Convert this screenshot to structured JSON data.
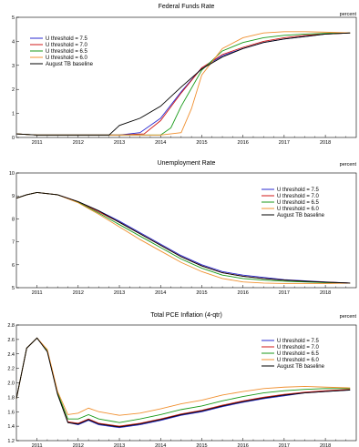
{
  "colors": {
    "u75": "#2a2ad0",
    "u70": "#d01818",
    "u65": "#189a18",
    "u60": "#f09030",
    "base": "#000000"
  },
  "chart_data": [
    {
      "type": "line",
      "title": "Federal Funds Rate",
      "ylabel": "percent",
      "xlabel": "",
      "xlim": [
        2010.5,
        2018.75
      ],
      "ylim": [
        0,
        5
      ],
      "yticks": [
        0,
        1,
        2,
        3,
        4,
        5
      ],
      "xticks": [
        "2011",
        "2012",
        "2013",
        "2014",
        "2015",
        "2016",
        "2017",
        "2018"
      ],
      "grid": false,
      "legend": "top-left",
      "series": [
        {
          "name": "U threshold = 7.5",
          "color_key": "u75",
          "x": [
            2010.5,
            2011,
            2012,
            2013,
            2013.5,
            2014,
            2014.5,
            2015,
            2015.5,
            2016,
            2016.5,
            2017,
            2017.5,
            2018,
            2018.6
          ],
          "y": [
            0.15,
            0.1,
            0.1,
            0.1,
            0.2,
            0.8,
            1.9,
            2.9,
            3.4,
            3.7,
            3.95,
            4.1,
            4.2,
            4.3,
            4.35
          ]
        },
        {
          "name": "U threshold = 7.0",
          "color_key": "u70",
          "x": [
            2010.5,
            2011,
            2012,
            2013,
            2013.6,
            2014,
            2014.5,
            2015,
            2015.5,
            2016,
            2016.5,
            2017,
            2017.5,
            2018,
            2018.6
          ],
          "y": [
            0.15,
            0.1,
            0.1,
            0.1,
            0.15,
            0.7,
            1.85,
            2.9,
            3.45,
            3.75,
            4.0,
            4.15,
            4.25,
            4.3,
            4.35
          ]
        },
        {
          "name": "U threshold = 6.5",
          "color_key": "u65",
          "x": [
            2010.5,
            2011,
            2012,
            2013,
            2014,
            2014.25,
            2014.5,
            2015,
            2015.5,
            2016,
            2016.5,
            2017,
            2017.5,
            2018,
            2018.6
          ],
          "y": [
            0.15,
            0.1,
            0.1,
            0.1,
            0.1,
            0.4,
            1.3,
            2.8,
            3.6,
            3.95,
            4.15,
            4.25,
            4.3,
            4.33,
            4.35
          ]
        },
        {
          "name": "U threshold = 6.0",
          "color_key": "u60",
          "x": [
            2010.5,
            2011,
            2012,
            2013,
            2014,
            2014.5,
            2014.75,
            2015,
            2015.5,
            2016,
            2016.5,
            2017,
            2017.5,
            2018,
            2018.6
          ],
          "y": [
            0.15,
            0.1,
            0.1,
            0.1,
            0.1,
            0.2,
            1.2,
            2.6,
            3.7,
            4.15,
            4.35,
            4.4,
            4.4,
            4.38,
            4.35
          ]
        },
        {
          "name": "August TB baseline",
          "color_key": "base",
          "x": [
            2010.5,
            2011,
            2012,
            2012.75,
            2013,
            2013.5,
            2014,
            2014.5,
            2015,
            2015.5,
            2016,
            2016.5,
            2017,
            2017.5,
            2018,
            2018.6
          ],
          "y": [
            0.15,
            0.1,
            0.1,
            0.1,
            0.5,
            0.8,
            1.3,
            2.1,
            2.85,
            3.35,
            3.7,
            3.95,
            4.1,
            4.2,
            4.3,
            4.35
          ]
        }
      ]
    },
    {
      "type": "line",
      "title": "Unemployment Rate",
      "ylabel": "percent",
      "xlabel": "",
      "xlim": [
        2010.5,
        2018.75
      ],
      "ylim": [
        5,
        10
      ],
      "yticks": [
        5,
        6,
        7,
        8,
        9,
        10
      ],
      "xticks": [
        "2011",
        "2012",
        "2013",
        "2014",
        "2015",
        "2016",
        "2017",
        "2018"
      ],
      "grid": false,
      "legend": "right",
      "series": [
        {
          "name": "U threshold = 7.5",
          "color_key": "u75",
          "x": [
            2010.5,
            2010.75,
            2011,
            2011.5,
            2012,
            2012.5,
            2013,
            2013.5,
            2014,
            2014.5,
            2015,
            2015.5,
            2016,
            2016.5,
            2017,
            2017.5,
            2018,
            2018.6
          ],
          "y": [
            8.9,
            9.05,
            9.15,
            9.05,
            8.75,
            8.35,
            7.9,
            7.4,
            6.9,
            6.4,
            6.0,
            5.7,
            5.55,
            5.45,
            5.35,
            5.3,
            5.25,
            5.2
          ]
        },
        {
          "name": "U threshold = 7.0",
          "color_key": "u70",
          "x": [
            2010.5,
            2010.75,
            2011,
            2011.5,
            2012,
            2012.5,
            2013,
            2013.5,
            2014,
            2014.5,
            2015,
            2015.5,
            2016,
            2016.5,
            2017,
            2017.5,
            2018,
            2018.6
          ],
          "y": [
            8.9,
            9.05,
            9.15,
            9.05,
            8.75,
            8.3,
            7.85,
            7.35,
            6.85,
            6.35,
            5.95,
            5.65,
            5.5,
            5.4,
            5.33,
            5.28,
            5.24,
            5.2
          ]
        },
        {
          "name": "U threshold = 6.5",
          "color_key": "u65",
          "x": [
            2010.5,
            2010.75,
            2011,
            2011.5,
            2012,
            2012.5,
            2013,
            2013.5,
            2014,
            2014.5,
            2015,
            2015.5,
            2016,
            2016.5,
            2017,
            2017.5,
            2018,
            2018.6
          ],
          "y": [
            8.9,
            9.05,
            9.15,
            9.05,
            8.72,
            8.25,
            7.75,
            7.25,
            6.75,
            6.25,
            5.85,
            5.55,
            5.4,
            5.33,
            5.28,
            5.25,
            5.22,
            5.2
          ]
        },
        {
          "name": "U threshold = 6.0",
          "color_key": "u60",
          "x": [
            2010.5,
            2010.75,
            2011,
            2011.5,
            2012,
            2012.5,
            2013,
            2013.5,
            2014,
            2014.5,
            2015,
            2015.5,
            2016,
            2016.5,
            2017,
            2017.5,
            2018,
            2018.6
          ],
          "y": [
            8.9,
            9.05,
            9.15,
            9.05,
            8.7,
            8.2,
            7.65,
            7.1,
            6.6,
            6.1,
            5.7,
            5.4,
            5.25,
            5.2,
            5.18,
            5.18,
            5.18,
            5.2
          ]
        },
        {
          "name": "August TB baseline",
          "color_key": "base",
          "x": [
            2010.5,
            2010.75,
            2011,
            2011.5,
            2012,
            2012.5,
            2013,
            2013.5,
            2014,
            2014.5,
            2015,
            2015.5,
            2016,
            2016.5,
            2017,
            2017.5,
            2018,
            2018.6
          ],
          "y": [
            8.9,
            9.05,
            9.15,
            9.05,
            8.75,
            8.35,
            7.85,
            7.35,
            6.85,
            6.35,
            5.95,
            5.65,
            5.5,
            5.4,
            5.33,
            5.28,
            5.24,
            5.2
          ]
        }
      ]
    },
    {
      "type": "line",
      "title": "Total PCE Inflation (4-qtr)",
      "ylabel": "percent",
      "xlabel": "",
      "xlim": [
        2010.5,
        2018.75
      ],
      "ylim": [
        1.2,
        2.8
      ],
      "yticks": [
        1.2,
        1.4,
        1.6,
        1.8,
        2.0,
        2.2,
        2.4,
        2.6,
        2.8
      ],
      "xticks": [
        "2011",
        "2012",
        "2013",
        "2014",
        "2015",
        "2016",
        "2017",
        "2018"
      ],
      "grid": false,
      "legend": "right",
      "series": [
        {
          "name": "U threshold = 7.5",
          "color_key": "u75",
          "x": [
            2010.5,
            2010.75,
            2011,
            2011.25,
            2011.5,
            2011.75,
            2012,
            2012.25,
            2012.5,
            2013,
            2013.5,
            2014,
            2014.5,
            2015,
            2015.5,
            2016,
            2016.5,
            2017,
            2017.5,
            2018,
            2018.6
          ],
          "y": [
            1.78,
            2.48,
            2.62,
            2.45,
            1.85,
            1.45,
            1.42,
            1.48,
            1.42,
            1.38,
            1.42,
            1.48,
            1.55,
            1.6,
            1.67,
            1.73,
            1.78,
            1.82,
            1.86,
            1.88,
            1.9
          ]
        },
        {
          "name": "U threshold = 7.0",
          "color_key": "u70",
          "x": [
            2010.5,
            2010.75,
            2011,
            2011.25,
            2011.5,
            2011.75,
            2012,
            2012.25,
            2012.5,
            2013,
            2013.5,
            2014,
            2014.5,
            2015,
            2015.5,
            2016,
            2016.5,
            2017,
            2017.5,
            2018,
            2018.6
          ],
          "y": [
            1.78,
            2.48,
            2.62,
            2.45,
            1.85,
            1.46,
            1.44,
            1.5,
            1.44,
            1.4,
            1.44,
            1.5,
            1.57,
            1.62,
            1.69,
            1.75,
            1.8,
            1.84,
            1.87,
            1.89,
            1.91
          ]
        },
        {
          "name": "U threshold = 6.5",
          "color_key": "u65",
          "x": [
            2010.5,
            2010.75,
            2011,
            2011.25,
            2011.5,
            2011.75,
            2012,
            2012.25,
            2012.5,
            2013,
            2013.5,
            2014,
            2014.5,
            2015,
            2015.5,
            2016,
            2016.5,
            2017,
            2017.5,
            2018,
            2018.6
          ],
          "y": [
            1.78,
            2.48,
            2.62,
            2.45,
            1.86,
            1.5,
            1.5,
            1.56,
            1.5,
            1.45,
            1.5,
            1.56,
            1.63,
            1.68,
            1.75,
            1.81,
            1.86,
            1.89,
            1.91,
            1.92,
            1.92
          ]
        },
        {
          "name": "U threshold = 6.0",
          "color_key": "u60",
          "x": [
            2010.5,
            2010.75,
            2011,
            2011.25,
            2011.5,
            2011.75,
            2012,
            2012.25,
            2012.5,
            2013,
            2013.5,
            2014,
            2014.5,
            2015,
            2015.5,
            2016,
            2016.5,
            2017,
            2017.5,
            2018,
            2018.6
          ],
          "y": [
            1.78,
            2.48,
            2.62,
            2.46,
            1.88,
            1.56,
            1.58,
            1.65,
            1.6,
            1.55,
            1.58,
            1.64,
            1.71,
            1.76,
            1.83,
            1.88,
            1.92,
            1.94,
            1.95,
            1.94,
            1.93
          ]
        },
        {
          "name": "August TB baseline",
          "color_key": "base",
          "x": [
            2010.5,
            2010.75,
            2011,
            2011.25,
            2011.5,
            2011.75,
            2012,
            2012.25,
            2012.5,
            2013,
            2013.5,
            2014,
            2014.5,
            2015,
            2015.5,
            2016,
            2016.5,
            2017,
            2017.5,
            2018,
            2018.6
          ],
          "y": [
            1.78,
            2.48,
            2.62,
            2.43,
            1.84,
            1.45,
            1.43,
            1.49,
            1.43,
            1.39,
            1.43,
            1.49,
            1.56,
            1.61,
            1.68,
            1.74,
            1.79,
            1.83,
            1.86,
            1.88,
            1.9
          ]
        }
      ]
    }
  ]
}
